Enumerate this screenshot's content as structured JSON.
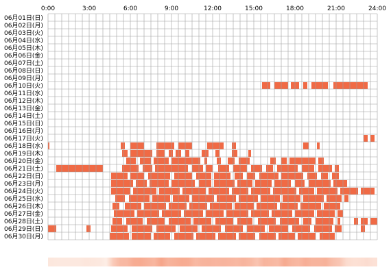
{
  "chart_data": {
    "type": "heatmap",
    "title": "",
    "x_tick_labels": [
      "0:00",
      "3:00",
      "6:00",
      "9:00",
      "12:00",
      "15:00",
      "18:00",
      "21:00",
      "24:00"
    ],
    "x_range_hours": [
      0,
      24
    ],
    "grid": true,
    "colors": {
      "activity": "#f06a45",
      "grid": "#9e9e9e",
      "heat_low": "#fdeee6",
      "heat_high": "#f6a58a"
    },
    "rows": [
      {
        "label": "06月01日(日)",
        "segments": []
      },
      {
        "label": "06月02日(月)",
        "segments": []
      },
      {
        "label": "06月03日(火)",
        "segments": []
      },
      {
        "label": "06月04日(水)",
        "segments": []
      },
      {
        "label": "06月05日(木)",
        "segments": []
      },
      {
        "label": "06月06日(金)",
        "segments": []
      },
      {
        "label": "06月07日(土)",
        "segments": []
      },
      {
        "label": "06月08日(日)",
        "segments": []
      },
      {
        "label": "06月09日(月)",
        "segments": []
      },
      {
        "label": "06月10日(火)",
        "segments": [
          [
            15.6,
            16.2
          ],
          [
            16.5,
            17.5
          ],
          [
            17.7,
            18.3
          ],
          [
            18.6,
            18.9
          ],
          [
            19.2,
            20.4
          ],
          [
            20.8,
            23.3
          ]
        ]
      },
      {
        "label": "06月11日(水)",
        "segments": []
      },
      {
        "label": "06月12日(木)",
        "segments": []
      },
      {
        "label": "06月13日(金)",
        "segments": []
      },
      {
        "label": "06月14日(土)",
        "segments": []
      },
      {
        "label": "06月15日(日)",
        "segments": []
      },
      {
        "label": "06月16日(月)",
        "segments": []
      },
      {
        "label": "06月17日(火)",
        "segments": [
          [
            23.0,
            23.3
          ],
          [
            23.5,
            23.8
          ]
        ]
      },
      {
        "label": "06月18日(水)",
        "segments": [
          [
            0.0,
            0.1
          ],
          [
            5.3,
            5.6
          ],
          [
            6.0,
            7.0
          ],
          [
            7.9,
            9.2
          ],
          [
            9.5,
            10.5
          ],
          [
            11.6,
            12.8
          ],
          [
            13.4,
            13.7
          ],
          [
            18.6,
            19.0
          ],
          [
            19.6,
            19.8
          ]
        ]
      },
      {
        "label": "06月19日(木)",
        "segments": [
          [
            5.4,
            5.8
          ],
          [
            6.0,
            7.6
          ],
          [
            7.9,
            8.5
          ],
          [
            8.8,
            9.1
          ],
          [
            9.3,
            9.7
          ],
          [
            10.0,
            10.3
          ],
          [
            11.2,
            11.7
          ],
          [
            12.2,
            12.5
          ],
          [
            13.4,
            13.8
          ],
          [
            14.6,
            14.8
          ]
        ]
      },
      {
        "label": "06月20日(金)",
        "segments": [
          [
            5.7,
            6.4
          ],
          [
            6.7,
            7.5
          ],
          [
            7.7,
            8.8
          ],
          [
            9.0,
            11.1
          ],
          [
            11.4,
            11.6
          ],
          [
            12.3,
            12.6
          ],
          [
            13.1,
            13.6
          ],
          [
            13.9,
            14.7
          ],
          [
            16.2,
            16.6
          ],
          [
            17.0,
            17.4
          ],
          [
            17.6,
            19.5
          ],
          [
            19.7,
            20.1
          ]
        ]
      },
      {
        "label": "06月21日(土)",
        "segments": [
          [
            0.6,
            4.0
          ],
          [
            5.4,
            6.6
          ],
          [
            6.9,
            7.6
          ],
          [
            7.8,
            10.2
          ],
          [
            10.5,
            11.3
          ],
          [
            11.5,
            12.0
          ],
          [
            12.4,
            13.2
          ],
          [
            13.5,
            14.5
          ],
          [
            14.8,
            15.6
          ],
          [
            15.9,
            16.4
          ],
          [
            16.7,
            18.2
          ],
          [
            18.5,
            19.4
          ],
          [
            19.7,
            20.7
          ],
          [
            20.9,
            21.2
          ]
        ]
      },
      {
        "label": "06月22日(日)",
        "segments": [
          [
            4.6,
            5.8
          ],
          [
            6.0,
            7.0
          ],
          [
            7.3,
            8.9
          ],
          [
            9.2,
            10.5
          ],
          [
            10.8,
            11.9
          ],
          [
            12.1,
            13.3
          ],
          [
            13.6,
            14.2
          ],
          [
            14.5,
            15.1
          ],
          [
            15.4,
            16.8
          ],
          [
            17.0,
            18.6
          ],
          [
            18.9,
            19.6
          ],
          [
            19.9,
            20.4
          ],
          [
            20.7,
            21.2
          ]
        ]
      },
      {
        "label": "06月23日(月)",
        "segments": [
          [
            4.6,
            6.2
          ],
          [
            6.4,
            7.2
          ],
          [
            7.4,
            8.8
          ],
          [
            9.0,
            10.7
          ],
          [
            11.0,
            11.9
          ],
          [
            12.1,
            13.6
          ],
          [
            13.8,
            14.9
          ],
          [
            15.1,
            16.3
          ],
          [
            16.5,
            17.7
          ],
          [
            18.0,
            18.7
          ],
          [
            19.0,
            20.6
          ],
          [
            20.8,
            21.8
          ]
        ]
      },
      {
        "label": "06月24日(火)",
        "segments": [
          [
            4.6,
            6.0
          ],
          [
            6.2,
            7.9
          ],
          [
            8.1,
            9.6
          ],
          [
            9.8,
            11.5
          ],
          [
            11.7,
            13.2
          ],
          [
            13.4,
            14.6
          ],
          [
            14.8,
            16.2
          ],
          [
            16.4,
            18.1
          ],
          [
            18.3,
            19.4
          ],
          [
            19.6,
            21.1
          ],
          [
            21.3,
            22.6
          ],
          [
            22.8,
            23.8
          ]
        ]
      },
      {
        "label": "06月25日(水)",
        "segments": [
          [
            4.9,
            5.6
          ],
          [
            5.9,
            7.4
          ],
          [
            7.6,
            8.9
          ],
          [
            9.1,
            10.3
          ],
          [
            10.5,
            12.1
          ],
          [
            12.3,
            13.7
          ],
          [
            13.9,
            15.3
          ],
          [
            15.5,
            16.9
          ],
          [
            17.1,
            18.4
          ],
          [
            18.6,
            20.1
          ],
          [
            20.3,
            21.4
          ],
          [
            21.6,
            21.9
          ]
        ]
      },
      {
        "label": "06月26日(木)",
        "segments": [
          [
            4.7,
            5.2
          ],
          [
            5.6,
            6.8
          ],
          [
            7.0,
            8.6
          ],
          [
            8.8,
            10.1
          ],
          [
            10.3,
            11.6
          ],
          [
            11.8,
            13.4
          ],
          [
            13.6,
            15.0
          ],
          [
            15.2,
            16.7
          ],
          [
            16.9,
            18.2
          ],
          [
            18.4,
            19.9
          ],
          [
            20.1,
            21.3
          ]
        ]
      },
      {
        "label": "06月27日(金)",
        "segments": [
          [
            4.8,
            6.3
          ],
          [
            6.5,
            8.1
          ],
          [
            8.3,
            9.7
          ],
          [
            9.9,
            11.3
          ],
          [
            11.5,
            12.8
          ],
          [
            13.0,
            14.6
          ],
          [
            14.8,
            16.1
          ],
          [
            16.3,
            17.8
          ],
          [
            18.0,
            19.4
          ],
          [
            19.6,
            20.9
          ],
          [
            21.1,
            21.5
          ]
        ]
      },
      {
        "label": "06月28日(土)",
        "segments": [
          [
            4.7,
            5.4
          ],
          [
            5.7,
            6.9
          ],
          [
            7.2,
            8.5
          ],
          [
            8.8,
            10.4
          ],
          [
            10.6,
            11.9
          ],
          [
            12.2,
            13.5
          ],
          [
            13.8,
            14.9
          ],
          [
            15.3,
            16.6
          ],
          [
            16.9,
            18.3
          ],
          [
            18.6,
            19.2
          ],
          [
            19.5,
            20.8
          ],
          [
            21.1,
            21.3
          ],
          [
            22.3,
            22.6
          ],
          [
            22.8,
            23.3
          ],
          [
            23.5,
            24.0
          ]
        ]
      },
      {
        "label": "06月29日(日)",
        "segments": [
          [
            0.0,
            0.6
          ],
          [
            2.8,
            3.1
          ],
          [
            4.6,
            5.8
          ],
          [
            6.1,
            7.6
          ],
          [
            7.9,
            9.3
          ],
          [
            9.6,
            10.9
          ],
          [
            11.2,
            12.6
          ],
          [
            12.9,
            14.2
          ],
          [
            14.5,
            15.8
          ],
          [
            16.1,
            17.5
          ],
          [
            17.8,
            19.1
          ],
          [
            19.4,
            20.7
          ],
          [
            20.9,
            21.4
          ],
          [
            22.8,
            23.1
          ]
        ]
      },
      {
        "label": "06月30日(月)",
        "segments": [
          [
            4.5,
            5.9
          ],
          [
            6.1,
            7.5
          ],
          [
            7.7,
            8.9
          ],
          [
            9.2,
            10.6
          ],
          [
            10.8,
            12.2
          ],
          [
            12.4,
            13.7
          ],
          [
            13.9,
            15.1
          ],
          [
            15.4,
            16.6
          ],
          [
            16.8,
            18.0
          ],
          [
            18.2,
            19.5
          ],
          [
            19.8,
            20.9
          ]
        ]
      }
    ]
  }
}
